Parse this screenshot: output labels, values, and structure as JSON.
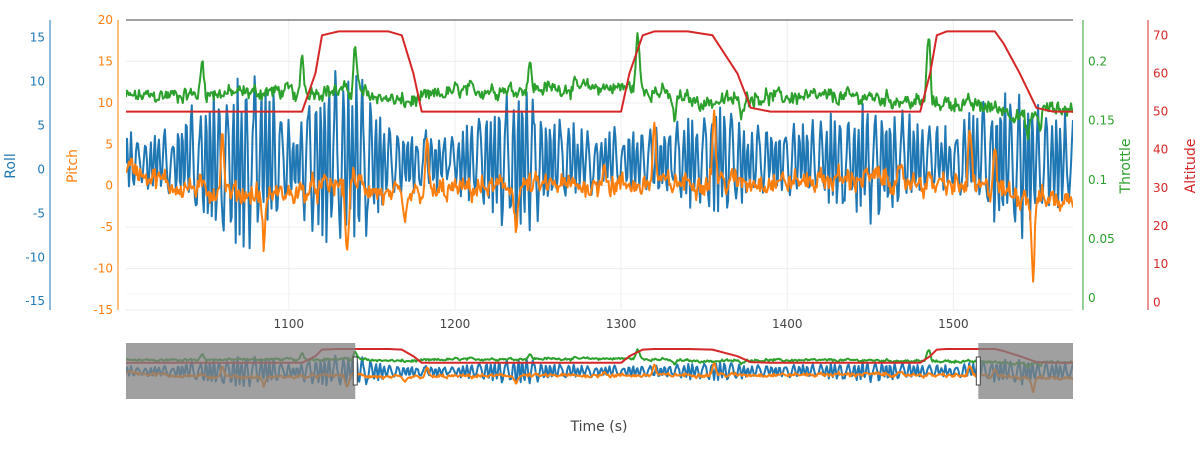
{
  "chart_data": {
    "type": "line",
    "xlabel": "Time (s)",
    "xlim": [
      1002,
      1572
    ],
    "x_ticks": [
      1100,
      1200,
      1300,
      1400,
      1500
    ],
    "grid": true,
    "legend": "none",
    "axes": {
      "roll": {
        "label": "Roll",
        "color": "#1f77b4",
        "range": [
          -16,
          17
        ],
        "ticks": [
          15,
          10,
          5,
          0,
          -5,
          -10,
          -15
        ]
      },
      "pitch": {
        "label": "Pitch",
        "color": "#ff7f0e",
        "range": [
          -15,
          20
        ],
        "ticks": [
          20,
          15,
          10,
          5,
          0,
          -5,
          -10,
          -15
        ]
      },
      "throttle": {
        "label": "Throttle",
        "color": "#2ca02c",
        "range": [
          -0.01,
          0.235
        ],
        "ticks": [
          0.2,
          0.15,
          0.1,
          0.05,
          0
        ]
      },
      "altitude": {
        "label": "Altitude",
        "color": "#d62728",
        "range": [
          -2,
          74
        ],
        "ticks": [
          70,
          60,
          50,
          40,
          30,
          20,
          10,
          0
        ]
      }
    },
    "series": [
      {
        "name": "Altitude",
        "axis": "altitude",
        "color": "#d62728",
        "x": [
          1002,
          1050,
          1100,
          1108,
          1116,
          1120,
          1130,
          1160,
          1168,
          1175,
          1180,
          1190,
          1240,
          1300,
          1305,
          1313,
          1320,
          1340,
          1355,
          1370,
          1378,
          1390,
          1430,
          1480,
          1486,
          1490,
          1496,
          1500,
          1525,
          1530,
          1540,
          1550,
          1560,
          1572
        ],
        "y": [
          50,
          50,
          50,
          50,
          60,
          70,
          71,
          71,
          70,
          60,
          50,
          50,
          50,
          50,
          60,
          70,
          71,
          71,
          70,
          60,
          51,
          50,
          50,
          50,
          60,
          70,
          71,
          71,
          71,
          68,
          60,
          51,
          50,
          50
        ]
      },
      {
        "name": "Throttle",
        "axis": "throttle",
        "color": "#2ca02c",
        "base": [
          [
            1002,
            0.17
          ],
          [
            1100,
            0.175
          ],
          [
            1140,
            0.175
          ],
          [
            1170,
            0.165
          ],
          [
            1200,
            0.175
          ],
          [
            1270,
            0.178
          ],
          [
            1310,
            0.178
          ],
          [
            1350,
            0.165
          ],
          [
            1380,
            0.17
          ],
          [
            1450,
            0.17
          ],
          [
            1480,
            0.165
          ],
          [
            1500,
            0.165
          ],
          [
            1530,
            0.16
          ],
          [
            1545,
            0.15
          ],
          [
            1552,
            0.16
          ],
          [
            1572,
            0.16
          ]
        ],
        "spikes": [
          [
            1048,
            0.2
          ],
          [
            1108,
            0.205
          ],
          [
            1140,
            0.212
          ],
          [
            1245,
            0.198
          ],
          [
            1310,
            0.222
          ],
          [
            1485,
            0.222
          ]
        ],
        "dips": [
          [
            1105,
            0.165
          ],
          [
            1332,
            0.15
          ],
          [
            1372,
            0.155
          ],
          [
            1545,
            0.135
          ],
          [
            1552,
            0.145
          ]
        ],
        "noise": 0.009
      },
      {
        "name": "Pitch",
        "axis": "pitch",
        "color": "#ff7f0e",
        "base": [
          [
            1002,
            2.5
          ],
          [
            1030,
            0
          ],
          [
            1070,
            -1
          ],
          [
            1100,
            -1
          ],
          [
            1140,
            0.5
          ],
          [
            1160,
            -1.5
          ],
          [
            1200,
            -0.5
          ],
          [
            1250,
            0
          ],
          [
            1300,
            0
          ],
          [
            1350,
            0.5
          ],
          [
            1400,
            0.5
          ],
          [
            1450,
            1
          ],
          [
            1500,
            0
          ],
          [
            1540,
            -1
          ],
          [
            1572,
            -2
          ]
        ],
        "spikes": [
          [
            1060,
            6
          ],
          [
            1183,
            5
          ],
          [
            1290,
            3.5
          ],
          [
            1320,
            7
          ],
          [
            1356,
            9
          ],
          [
            1440,
            6
          ],
          [
            1510,
            7
          ],
          [
            1525,
            5
          ]
        ],
        "dips": [
          [
            1085,
            -7
          ],
          [
            1135,
            -8
          ],
          [
            1170,
            -5
          ],
          [
            1237,
            -5
          ],
          [
            1440,
            -4.5
          ],
          [
            1548,
            -10.5
          ]
        ],
        "noise": 1.9
      },
      {
        "name": "Roll",
        "axis": "roll",
        "color": "#1f77b4",
        "base": [
          [
            1002,
            1
          ],
          [
            1100,
            1
          ],
          [
            1200,
            1
          ],
          [
            1300,
            1
          ],
          [
            1400,
            1
          ],
          [
            1500,
            1
          ],
          [
            1572,
            1
          ]
        ],
        "amplitude": [
          [
            1002,
            3.5
          ],
          [
            1030,
            3.5
          ],
          [
            1050,
            8
          ],
          [
            1075,
            11
          ],
          [
            1092,
            8
          ],
          [
            1105,
            3.5
          ],
          [
            1110,
            8
          ],
          [
            1125,
            11
          ],
          [
            1145,
            10
          ],
          [
            1160,
            4
          ],
          [
            1200,
            3.5
          ],
          [
            1220,
            6
          ],
          [
            1240,
            10
          ],
          [
            1255,
            6
          ],
          [
            1280,
            3.5
          ],
          [
            1320,
            4
          ],
          [
            1340,
            6
          ],
          [
            1360,
            7
          ],
          [
            1380,
            4
          ],
          [
            1420,
            5
          ],
          [
            1450,
            7
          ],
          [
            1470,
            5
          ],
          [
            1500,
            4
          ],
          [
            1515,
            6
          ],
          [
            1540,
            9
          ],
          [
            1572,
            5
          ]
        ],
        "noise": 1.0
      }
    ],
    "range_slider": {
      "selected": [
        1140,
        1515
      ]
    }
  }
}
